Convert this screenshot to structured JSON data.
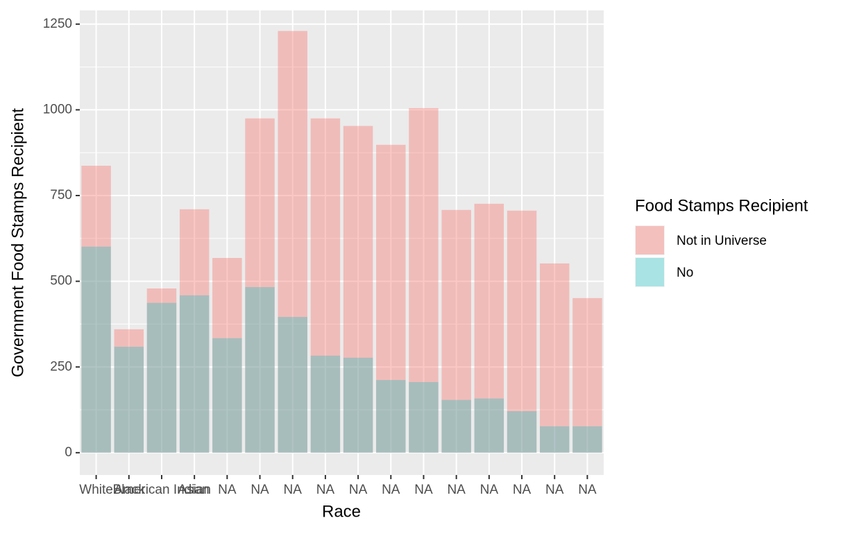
{
  "chart_data": {
    "type": "bar",
    "x_label": "Race",
    "y_label": "Government Food Stamps Recipient",
    "legend_title": "Food Stamps Recipient",
    "categories": [
      "White",
      "Black",
      "American Indian",
      "Asian",
      "NA",
      "NA",
      "NA",
      "NA",
      "NA",
      "NA",
      "NA",
      "NA",
      "NA",
      "NA",
      "NA",
      "NA"
    ],
    "series": [
      {
        "name": "Not in Universe",
        "color": "#F8766D",
        "values": [
          837,
          360,
          479,
          710,
          568,
          975,
          1230,
          975,
          953,
          898,
          1005,
          708,
          726,
          706,
          552,
          451
        ]
      },
      {
        "name": "No",
        "color": "#00BFC4",
        "values": [
          601,
          309,
          437,
          459,
          334,
          483,
          396,
          283,
          277,
          212,
          206,
          154,
          158,
          121,
          77,
          77
        ]
      }
    ],
    "ylim": [
      -65,
      1290
    ],
    "yticks": [
      0,
      250,
      500,
      750,
      1000,
      1250
    ],
    "grid": true,
    "legend": "right"
  }
}
